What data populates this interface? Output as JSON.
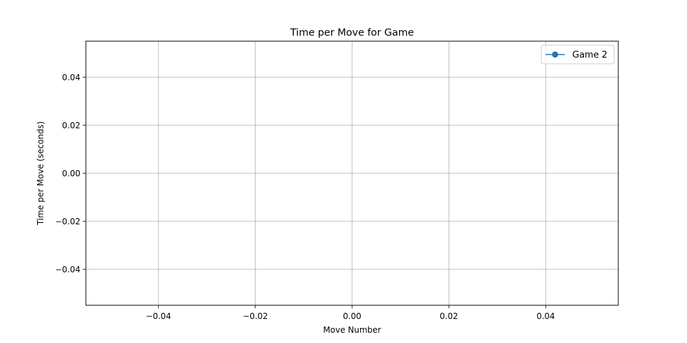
{
  "chart_data": {
    "type": "line",
    "title": "Time per Move for Game",
    "xlabel": "Move Number",
    "ylabel": "Time per Move (seconds)",
    "xlim": [
      -0.055,
      0.055
    ],
    "ylim": [
      -0.055,
      0.055
    ],
    "x_ticks": [
      -0.04,
      -0.02,
      0.0,
      0.02,
      0.04
    ],
    "x_tick_labels": [
      "−0.04",
      "−0.02",
      "0.00",
      "0.02",
      "0.04"
    ],
    "y_ticks": [
      -0.04,
      -0.02,
      0.0,
      0.02,
      0.04
    ],
    "y_tick_labels": [
      "−0.04",
      "−0.02",
      "0.00",
      "0.02",
      "0.04"
    ],
    "grid": true,
    "legend_position": "top-right",
    "series": [
      {
        "name": "Game 2",
        "color": "#1f77b4",
        "marker": "circle",
        "x": [],
        "y": []
      }
    ]
  }
}
